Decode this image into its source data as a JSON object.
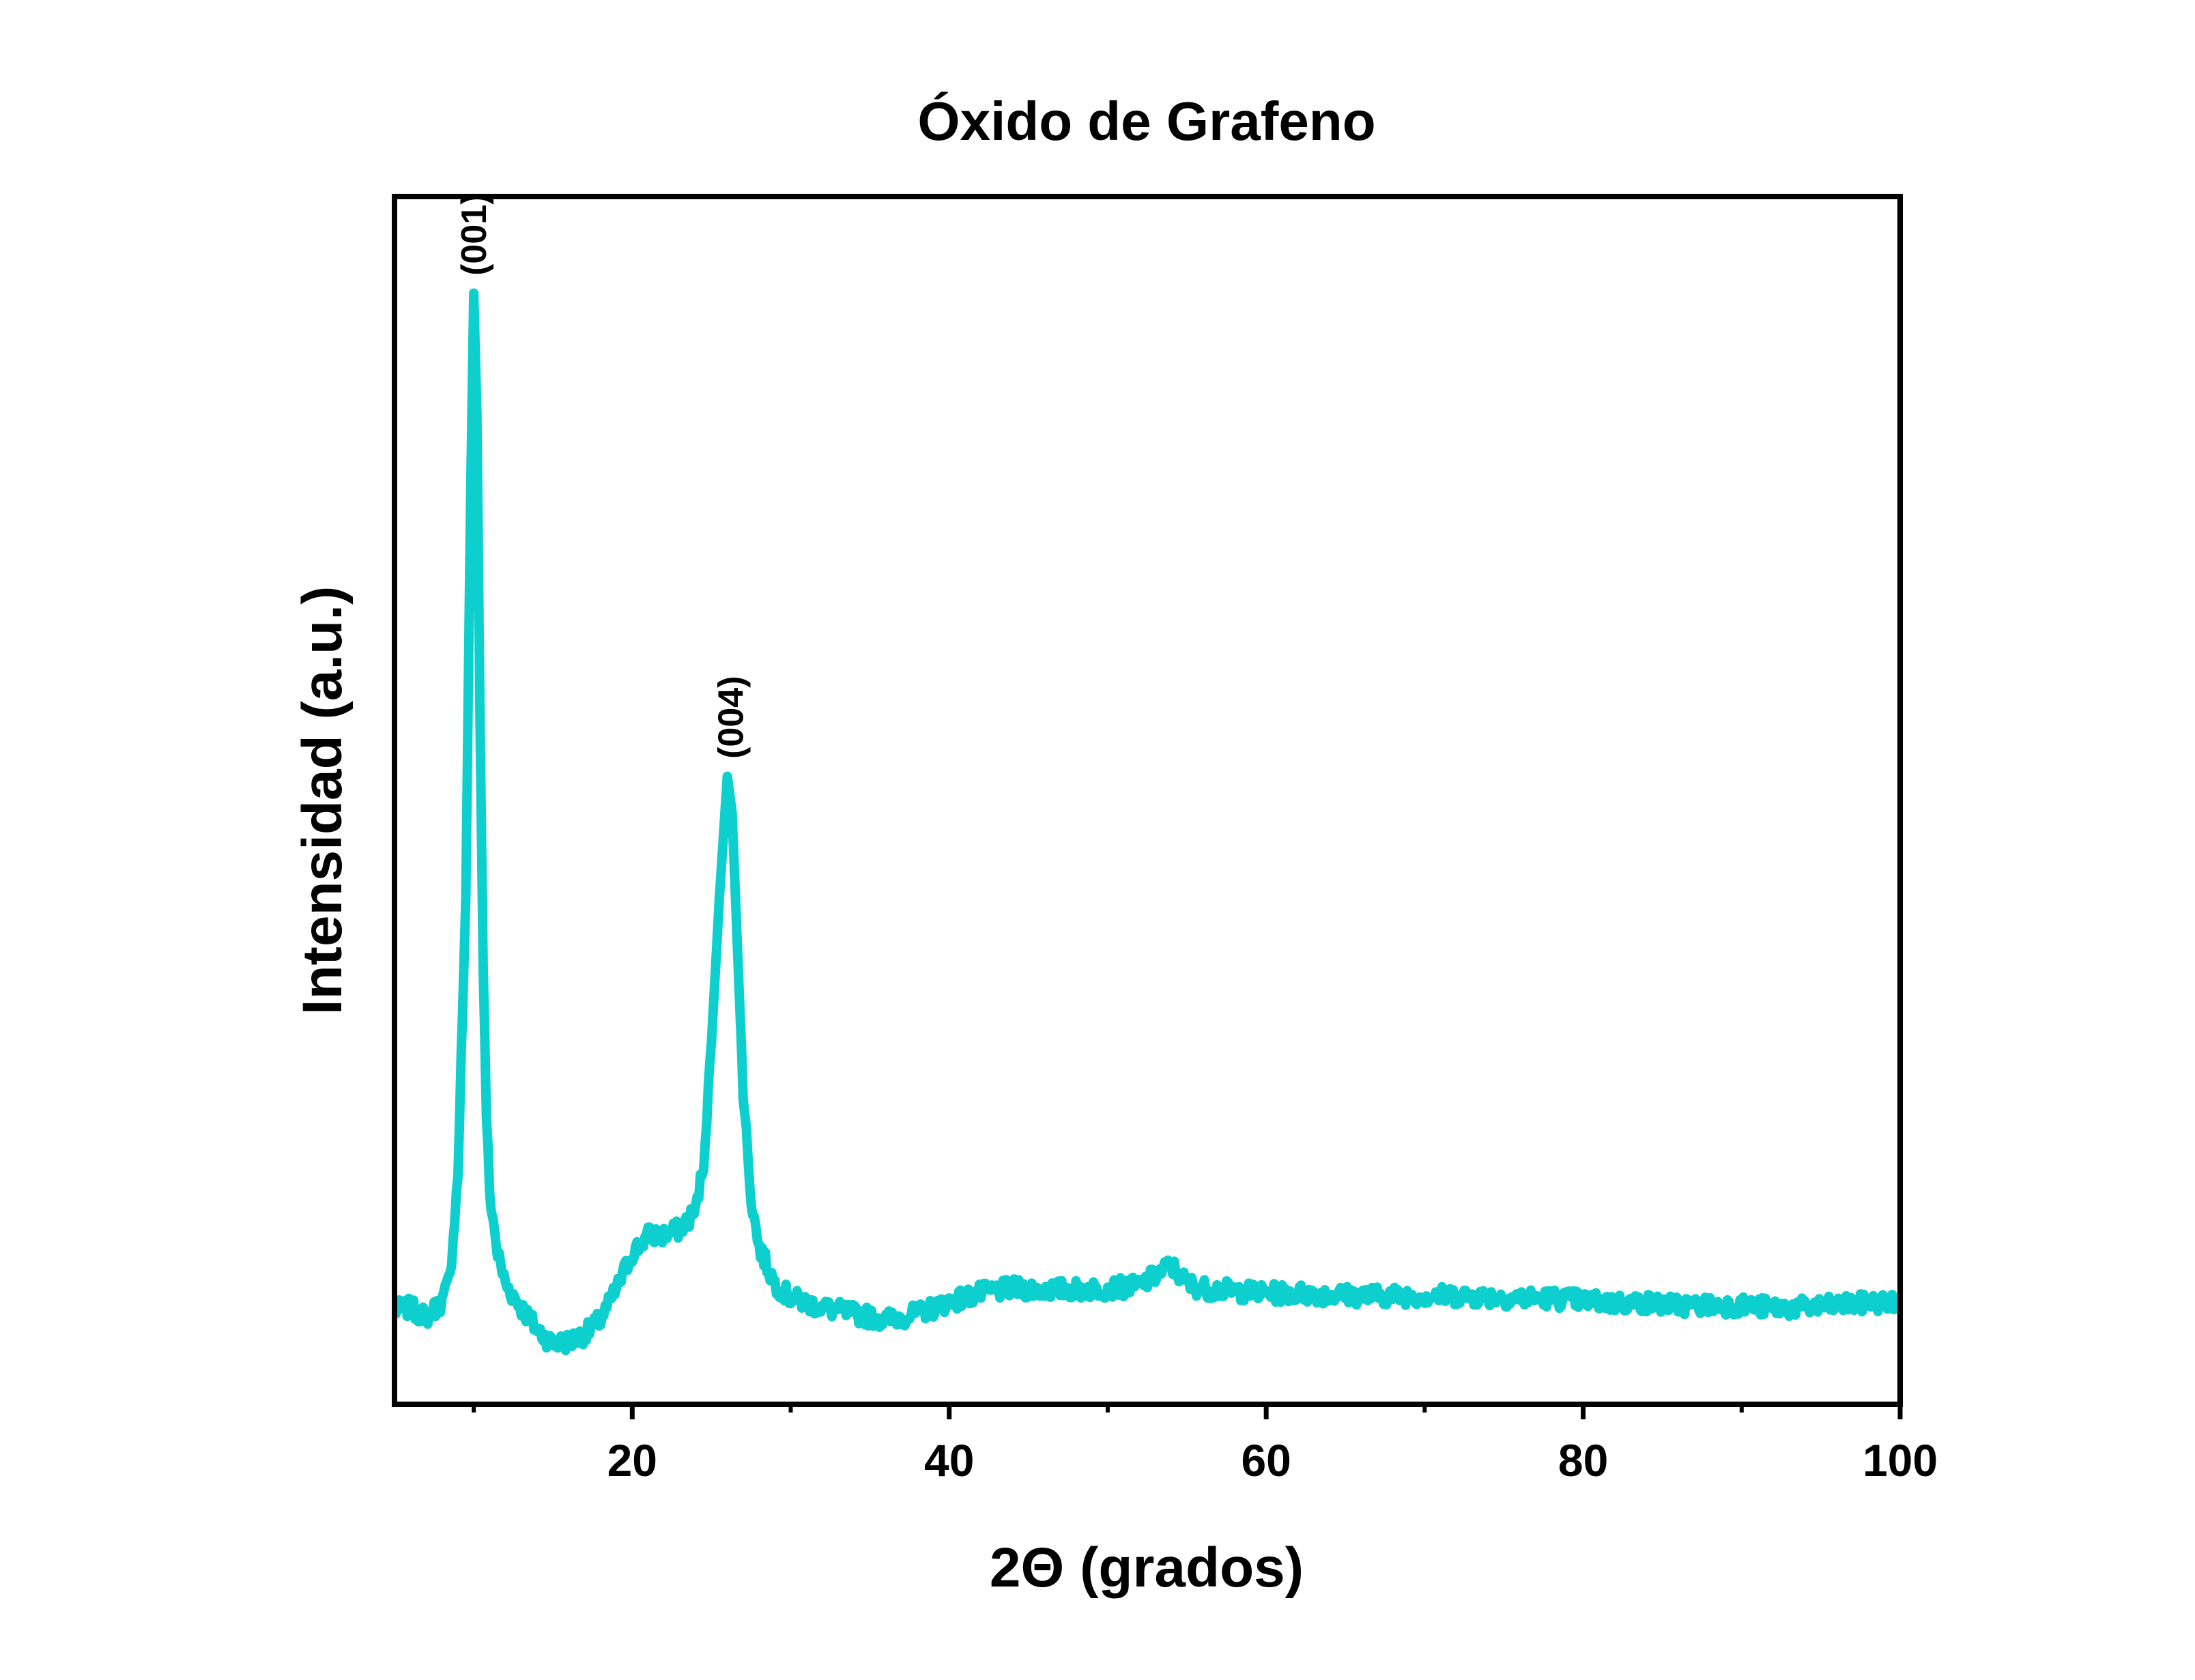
{
  "chart_data": {
    "type": "line",
    "title": "Óxido de Grafeno",
    "xlabel": "2Θ (grados)",
    "ylabel": "Intensidad (a.u.)",
    "xlim": [
      5,
      100
    ],
    "ylim": [
      0,
      1000
    ],
    "xticks": [
      20,
      40,
      60,
      80,
      100
    ],
    "xtick_labels": [
      "20",
      "40",
      "60",
      "80",
      "100"
    ],
    "minor_xticks": [
      10,
      30,
      50,
      70,
      90
    ],
    "yticks_shown": false,
    "grid": false,
    "legend": "none",
    "series": [
      {
        "color": "#0ccfce",
        "x": [
          5,
          6,
          7,
          8,
          8.5,
          9,
          9.5,
          9.8,
          10.0,
          10.2,
          10.4,
          10.6,
          10.8,
          11,
          11.5,
          12,
          13,
          14,
          15,
          16,
          17,
          18,
          19,
          20,
          21,
          22,
          23,
          24,
          24.5,
          25,
          25.5,
          26,
          26.3,
          26.6,
          27,
          27.5,
          28,
          29,
          30,
          32,
          34,
          36,
          38,
          40,
          42,
          44,
          46,
          48,
          50,
          52,
          54,
          55,
          56,
          58,
          60,
          62,
          64,
          66,
          68,
          70,
          72,
          74,
          76,
          78,
          80,
          82,
          84,
          86,
          88,
          90,
          92,
          94,
          96,
          98,
          100
        ],
        "y": [
          78,
          80,
          72,
          85,
          105,
          190,
          420,
          750,
          920,
          820,
          560,
          360,
          240,
          175,
          125,
          100,
          80,
          62,
          50,
          52,
          58,
          70,
          95,
          125,
          140,
          140,
          145,
          160,
          200,
          300,
          420,
          520,
          490,
          390,
          260,
          170,
          130,
          100,
          88,
          80,
          75,
          70,
          75,
          85,
          92,
          96,
          95,
          95,
          96,
          98,
          115,
          100,
          96,
          94,
          92,
          92,
          91,
          90,
          90,
          90,
          90,
          89,
          88,
          88,
          86,
          84,
          84,
          82,
          82,
          82,
          80,
          80,
          82,
          84,
          85
        ]
      }
    ],
    "annotations": [
      {
        "text": "(001)",
        "x": 10.0,
        "y": 930
      },
      {
        "text": "(004)",
        "x": 26.2,
        "y": 530
      }
    ]
  }
}
